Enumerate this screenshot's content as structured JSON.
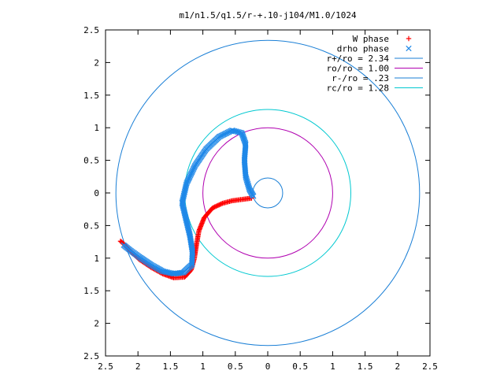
{
  "chart_data": {
    "type": "scatter",
    "title": "m1/n1.5/q1.5/r-+.10-j104/M1.0/1024",
    "xlabel": "",
    "ylabel": "",
    "xlim": [
      -2.5,
      2.5
    ],
    "ylim": [
      -2.5,
      2.5
    ],
    "grid": false,
    "legend_position": "top-right",
    "x_ticks": [
      -2.5,
      -2,
      -1.5,
      -1,
      -0.5,
      0,
      0.5,
      1,
      1.5,
      2,
      2.5
    ],
    "x_tick_labels": [
      "2.5",
      "2",
      "1.5",
      "1",
      "0.5",
      "0",
      "0.5",
      "1",
      "1.5",
      "2",
      "2.5"
    ],
    "y_ticks": [
      2.5,
      2,
      1.5,
      1,
      0.5,
      0,
      -0.5,
      -1,
      -1.5,
      -2,
      -2.5
    ],
    "y_tick_labels": [
      "2.5",
      "2",
      "1.5",
      "1",
      "0.5",
      "0",
      "0.5",
      "1",
      "1.5",
      "2",
      "2.5"
    ],
    "series": [
      {
        "name": "W phase",
        "marker": "+",
        "color": "#ff0000",
        "points": [
          [
            -0.25,
            -0.08
          ],
          [
            -0.4,
            -0.1
          ],
          [
            -0.55,
            -0.12
          ],
          [
            -0.7,
            -0.16
          ],
          [
            -0.85,
            -0.23
          ],
          [
            -0.98,
            -0.38
          ],
          [
            -1.06,
            -0.58
          ],
          [
            -1.1,
            -0.8
          ],
          [
            -1.13,
            -1.0
          ],
          [
            -1.18,
            -1.18
          ],
          [
            -1.28,
            -1.29
          ],
          [
            -1.45,
            -1.3
          ],
          [
            -1.62,
            -1.24
          ],
          [
            -1.8,
            -1.14
          ],
          [
            -1.98,
            -1.02
          ],
          [
            -2.13,
            -0.88
          ],
          [
            -2.22,
            -0.78
          ],
          [
            -2.27,
            -0.74
          ]
        ]
      },
      {
        "name": "drho phase",
        "marker": "x",
        "color": "#1f88e8",
        "points": [
          [
            -0.22,
            -0.05
          ],
          [
            -0.28,
            0.05
          ],
          [
            -0.34,
            0.25
          ],
          [
            -0.36,
            0.5
          ],
          [
            -0.34,
            0.75
          ],
          [
            -0.4,
            0.92
          ],
          [
            -0.55,
            0.96
          ],
          [
            -0.75,
            0.86
          ],
          [
            -0.95,
            0.67
          ],
          [
            -1.12,
            0.42
          ],
          [
            -1.25,
            0.15
          ],
          [
            -1.32,
            -0.15
          ],
          [
            -1.26,
            -0.4
          ],
          [
            -1.2,
            -0.65
          ],
          [
            -1.16,
            -0.9
          ],
          [
            -1.17,
            -1.1
          ],
          [
            -1.3,
            -1.22
          ],
          [
            -1.45,
            -1.24
          ],
          [
            -1.62,
            -1.2
          ],
          [
            -1.8,
            -1.1
          ],
          [
            -1.98,
            -0.98
          ],
          [
            -2.12,
            -0.88
          ],
          [
            -2.22,
            -0.8
          ]
        ]
      }
    ],
    "circles": [
      {
        "name": "r+/ro = 2.34",
        "radius": 2.34,
        "color": "#1a7fd6"
      },
      {
        "name": "ro/ro = 1.00",
        "radius": 1.0,
        "color": "#b000b0"
      },
      {
        "name": "r-/ro = .23",
        "radius": 0.23,
        "color": "#1a7fd6"
      },
      {
        "name": "rc/ro = 1.28",
        "radius": 1.28,
        "color": "#00c8d0"
      }
    ]
  }
}
